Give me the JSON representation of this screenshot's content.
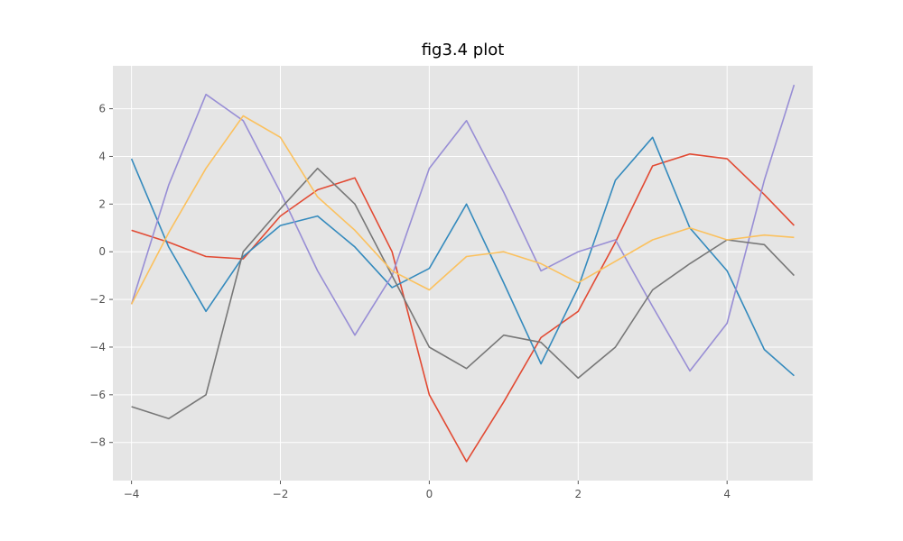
{
  "chart_data": {
    "type": "line",
    "title": "fig3.4 plot",
    "xlabel": "",
    "ylabel": "",
    "xlim": [
      -4.25,
      5.15
    ],
    "ylim": [
      -9.6,
      7.8
    ],
    "grid": true,
    "legend": "none",
    "background": "#e5e5e5",
    "xticks": [
      -4,
      -2,
      0,
      2,
      4
    ],
    "yticks": [
      -8,
      -6,
      -4,
      -2,
      0,
      2,
      4,
      6
    ],
    "xtick_labels": [
      "−4",
      "−2",
      "0",
      "2",
      "4"
    ],
    "ytick_labels": [
      "−8",
      "−6",
      "−4",
      "−2",
      "0",
      "2",
      "4",
      "6"
    ],
    "x": [
      -4.0,
      -3.5,
      -3.0,
      -2.5,
      -2.0,
      -1.5,
      -1.0,
      -0.5,
      0.0,
      0.5,
      1.0,
      1.5,
      2.0,
      2.5,
      3.0,
      3.5,
      4.0,
      4.5,
      4.9
    ],
    "series": [
      {
        "color": "#e24a33",
        "values": [
          0.9,
          0.4,
          -0.2,
          -0.3,
          1.5,
          2.6,
          3.1,
          0.0,
          -6.0,
          -8.8,
          -6.3,
          -3.6,
          -2.5,
          0.4,
          3.6,
          4.1,
          3.9,
          2.4,
          1.1
        ]
      },
      {
        "color": "#348abd",
        "values": [
          3.9,
          0.2,
          -2.5,
          -0.2,
          1.1,
          1.5,
          0.2,
          -1.5,
          -0.7,
          2.0,
          -1.3,
          -4.7,
          -1.5,
          3.0,
          4.8,
          1.0,
          -0.8,
          -4.1,
          -5.2
        ]
      },
      {
        "color": "#988ed5",
        "values": [
          -2.2,
          2.8,
          6.6,
          5.5,
          2.5,
          -0.8,
          -3.5,
          -1.0,
          3.5,
          5.5,
          2.5,
          -0.8,
          0.0,
          0.5,
          -2.3,
          -5.0,
          -3.0,
          3.0,
          7.0
        ]
      },
      {
        "color": "#777777",
        "values": [
          -6.5,
          -7.0,
          -6.0,
          0.0,
          1.8,
          3.5,
          2.0,
          -1.0,
          -4.0,
          -4.9,
          -3.5,
          -3.8,
          -5.3,
          -4.0,
          -1.6,
          -0.5,
          0.5,
          0.3,
          -1.0
        ]
      },
      {
        "color": "#fbc15e",
        "values": [
          -2.2,
          0.8,
          3.5,
          5.7,
          4.8,
          2.3,
          0.9,
          -0.8,
          -1.6,
          -0.2,
          0.0,
          -0.5,
          -1.3,
          -0.4,
          0.5,
          1.0,
          0.5,
          0.7,
          0.6
        ]
      }
    ]
  }
}
